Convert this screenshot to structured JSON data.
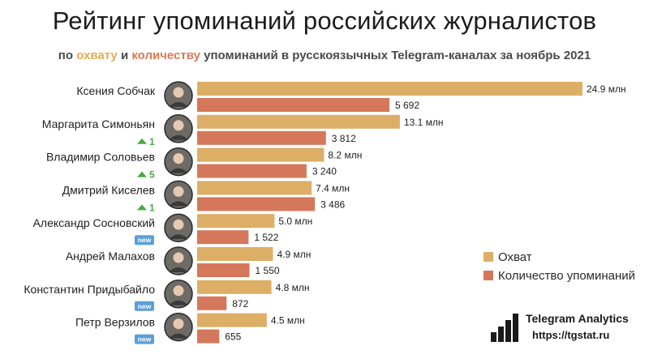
{
  "header": {
    "title": "Рейтинг упоминаний российских журналистов",
    "subtitle_prefix": "по",
    "subtitle_reach": "охвату",
    "subtitle_and": "и",
    "subtitle_count": "количеству",
    "subtitle_suffix": "упоминаний в русскоязычных Telegram-каналах за ноябрь 2021"
  },
  "colors": {
    "reach": "#dcae66",
    "mentions": "#d4775a",
    "up_arrow": "#4aa84a",
    "new_badge": "#5a9fd8"
  },
  "chart_data": {
    "type": "bar",
    "orientation": "horizontal",
    "categories": [
      "Ксения Собчак",
      "Маргарита Симоньян",
      "Владимир Соловьев",
      "Дмитрий Киселев",
      "Александр Сосновский",
      "Андрей Малахов",
      "Константин Придыбайло",
      "Петр Верзилов"
    ],
    "series": [
      {
        "name": "Охват",
        "values": [
          24.9,
          13.1,
          8.2,
          7.4,
          5.0,
          4.9,
          4.8,
          4.5
        ],
        "labels": [
          "24.9 млн",
          "13.1 млн",
          "8.2 млн",
          "7.4 млн",
          "5.0 млн",
          "4.9 млн",
          "4.8 млн",
          "4.5 млн"
        ]
      },
      {
        "name": "Количество упоминаний",
        "values": [
          5692,
          3812,
          3240,
          3486,
          1522,
          1550,
          872,
          655
        ],
        "labels": [
          "5 692",
          "3 812",
          "3 240",
          "3 486",
          "1 522",
          "1 550",
          "872",
          "655"
        ]
      }
    ],
    "rank_change": [
      "",
      "1",
      "5",
      "1",
      "",
      "",
      "",
      ""
    ],
    "new_badge": [
      false,
      false,
      false,
      false,
      true,
      false,
      true,
      true
    ],
    "new_label": "new",
    "grid": false,
    "legend_position": "right"
  },
  "legend": {
    "reach": "Охват",
    "mentions": "Количество упоминаний"
  },
  "brand": {
    "name": "Telegram Analytics",
    "url": "https://tgstat.ru",
    "icon": "bar-chart-icon"
  }
}
